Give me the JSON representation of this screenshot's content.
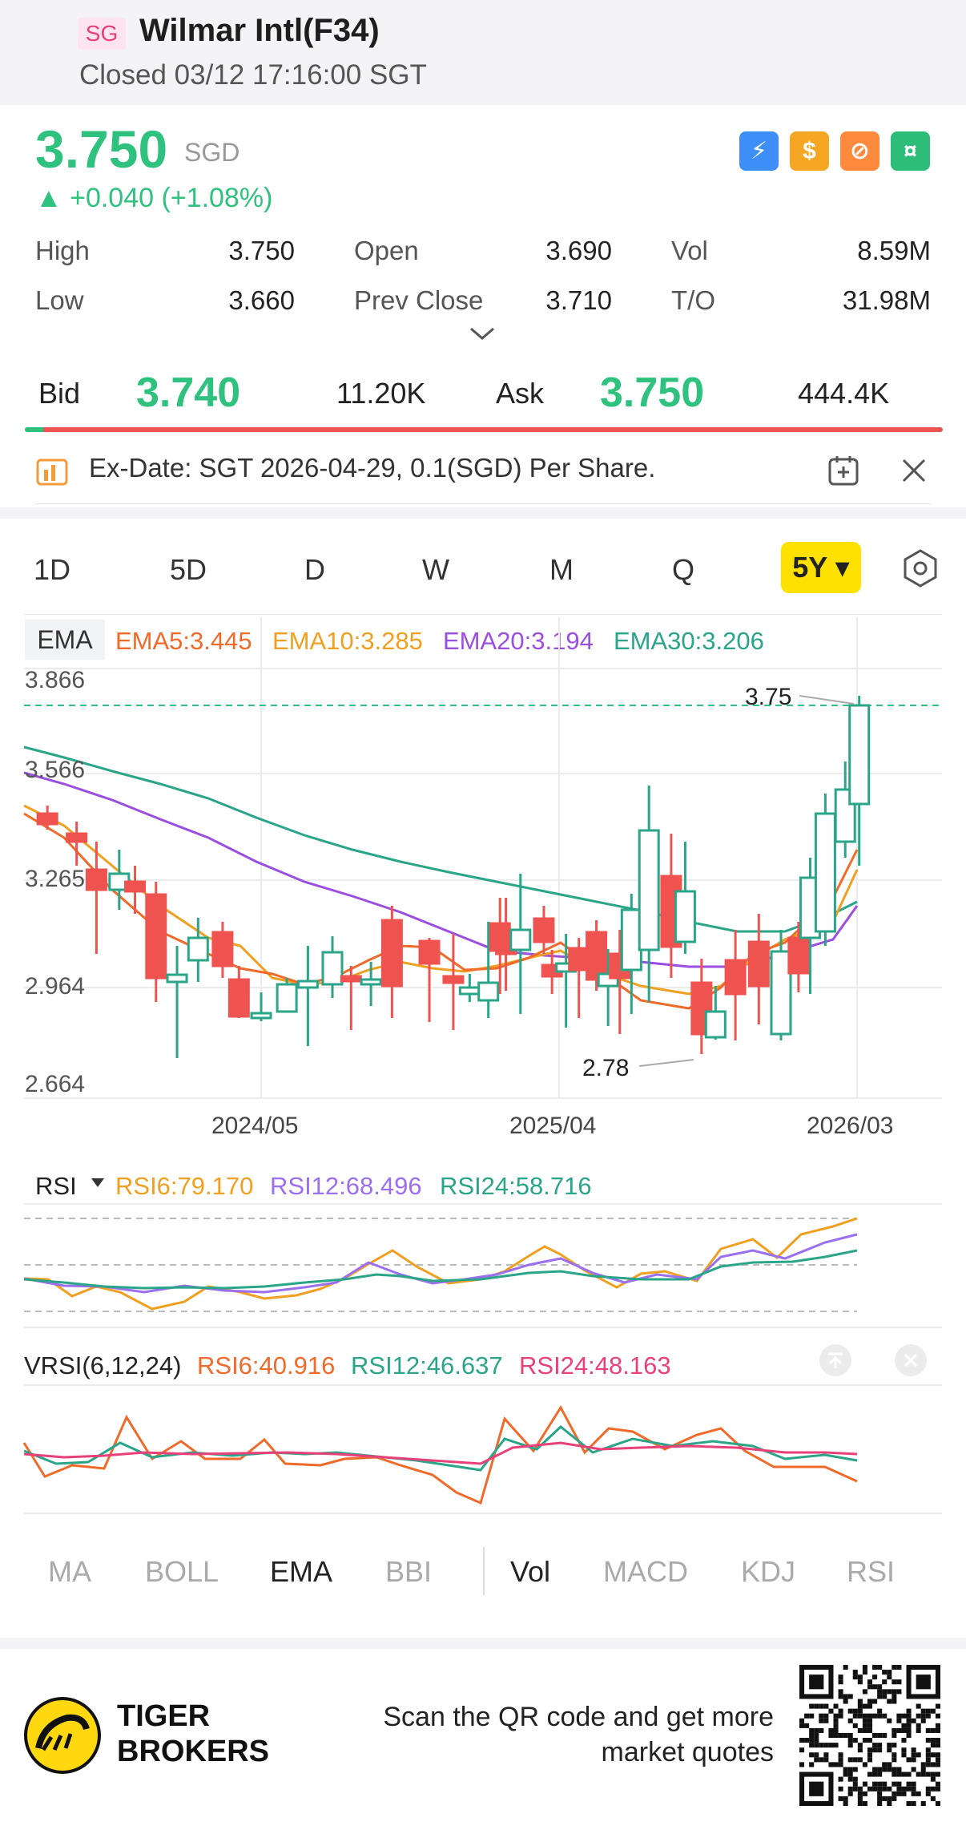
{
  "header": {
    "market_badge": "SG",
    "title": "Wilmar Intl(F34)",
    "status": "Closed 03/12 17:16:00 SGT"
  },
  "quote": {
    "price": "3.750",
    "currency": "SGD",
    "change": "▲ +0.040 (+1.08%)",
    "up_color": "#2ec27e"
  },
  "feature_icons": [
    {
      "name": "flash-icon",
      "color": "#3d8ef7",
      "glyph": "⚡"
    },
    {
      "name": "dividend-icon",
      "color": "#f5a623",
      "glyph": "$"
    },
    {
      "name": "no-short-icon",
      "color": "#ff8a3d",
      "glyph": "⊘"
    },
    {
      "name": "cash-icon",
      "color": "#2ebc79",
      "glyph": "¤"
    }
  ],
  "stats": {
    "high_label": "High",
    "high": "3.750",
    "low_label": "Low",
    "low": "3.660",
    "open_label": "Open",
    "open": "3.690",
    "prev_label": "Prev Close",
    "prev": "3.710",
    "vol_label": "Vol",
    "vol": "8.59M",
    "to_label": "T/O",
    "to": "31.98M"
  },
  "order_book": {
    "bid_label": "Bid",
    "bid_price": "3.740",
    "bid_size": "11.20K",
    "ask_label": "Ask",
    "ask_price": "3.750",
    "ask_size": "444.4K",
    "bid_share": 0.02
  },
  "notice": {
    "text": "Ex-Date: SGT 2026-04-29, 0.1(SGD) Per Share."
  },
  "periods": [
    "1D",
    "5D",
    "D",
    "W",
    "M",
    "Q"
  ],
  "period_selected": "5Y ▾",
  "main_chart": {
    "indicator_chip": "EMA",
    "legend": [
      {
        "text": "EMA5:3.445",
        "color": "#f06a2a"
      },
      {
        "text": "EMA10:3.285",
        "color": "#f0a020"
      },
      {
        "text": "EMA20:3.194",
        "color": "#9b4fe0"
      },
      {
        "text": "EMA30:3.206",
        "color": "#2aa58a"
      }
    ],
    "y_ticks": [
      "3.866",
      "3.566",
      "3.265",
      "2.964",
      "2.664"
    ],
    "x_ticks": [
      "2024/05",
      "2025/04",
      "2026/03"
    ],
    "high_marker": "3.75",
    "low_marker": "2.78"
  },
  "rsi_panel": {
    "title": "RSI",
    "legend": [
      {
        "text": "RSI6:79.170",
        "color": "#f0a020"
      },
      {
        "text": "RSI12:68.496",
        "color": "#9b6ff0"
      },
      {
        "text": "RSI24:58.716",
        "color": "#2aa58a"
      }
    ]
  },
  "vrsi_panel": {
    "title": "VRSI(6,12,24)",
    "legend": [
      {
        "text": "RSI6:40.916",
        "color": "#f06a2a"
      },
      {
        "text": "RSI12:46.637",
        "color": "#2aa58a"
      },
      {
        "text": "RSI24:48.163",
        "color": "#e8417a"
      }
    ]
  },
  "indicator_tabs": [
    {
      "label": "MA",
      "on": false
    },
    {
      "label": "BOLL",
      "on": false
    },
    {
      "label": "EMA",
      "on": true
    },
    {
      "label": "BBI",
      "on": false
    },
    {
      "label": "Vol",
      "on": true
    },
    {
      "label": "MACD",
      "on": false
    },
    {
      "label": "KDJ",
      "on": false
    },
    {
      "label": "RSI",
      "on": false
    }
  ],
  "footer": {
    "brand_line1": "TIGER",
    "brand_line2": "BROKERS",
    "qr_line1": "Scan the QR code and get more",
    "qr_line2": "market quotes"
  }
}
